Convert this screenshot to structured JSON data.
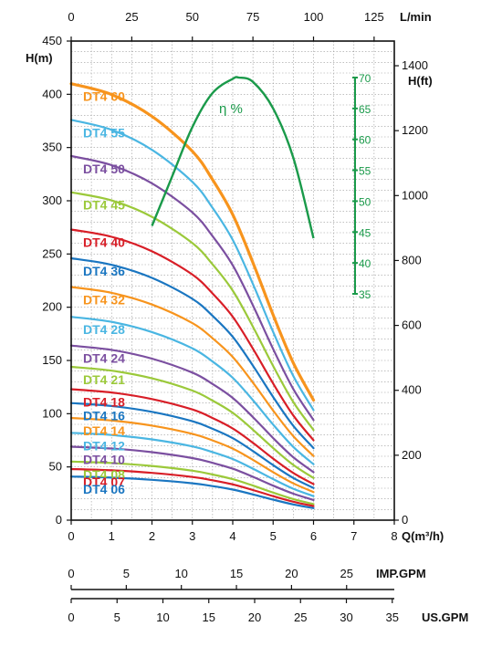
{
  "chart_data": {
    "type": "line",
    "x_unit": "Q(m³/h)",
    "y_unit_left": "H(m)",
    "y_unit_right": "H(ft)",
    "top_axis_unit": "L/min",
    "imp_unit": "IMP.GPM",
    "us_unit": "US.GPM",
    "eta_label": "η %",
    "xlim": [
      0,
      8
    ],
    "ylim": [
      0,
      450
    ],
    "ft_lim": [
      0,
      1476
    ],
    "x_ticks": [
      "0",
      "1",
      "2",
      "3",
      "4",
      "5",
      "6",
      "7",
      "8"
    ],
    "y_ticks": [
      "0",
      "50",
      "100",
      "150",
      "200",
      "250",
      "300",
      "350",
      "400",
      "450"
    ],
    "ft_ticks": [
      "0",
      "200",
      "400",
      "600",
      "800",
      "1000",
      "1200",
      "1400"
    ],
    "lmin_ticks": [
      "0",
      "25",
      "50",
      "75",
      "100",
      "125"
    ],
    "imp_ticks": [
      "0",
      "5",
      "10",
      "15",
      "20",
      "25"
    ],
    "us_ticks": [
      "0",
      "5",
      "10",
      "15",
      "20",
      "25",
      "30",
      "35"
    ],
    "eff_ticks": [
      "70",
      "65",
      "60",
      "55",
      "50",
      "45",
      "40",
      "35"
    ],
    "eff_scale": {
      "min": 35,
      "max": 70
    },
    "x": [
      0,
      1,
      2,
      3,
      3.5,
      4,
      4.5,
      5,
      5.5,
      6
    ],
    "shape": [
      1.0,
      0.975,
      0.925,
      0.845,
      0.78,
      0.7,
      0.59,
      0.47,
      0.36,
      0.275
    ],
    "series": [
      {
        "name": "DT4-60",
        "shutoff": 410,
        "color": "#f7941d"
      },
      {
        "name": "DT4-55",
        "shutoff": 376,
        "color": "#4ab6e2"
      },
      {
        "name": "DT4-50",
        "shutoff": 342,
        "color": "#7b4fa0"
      },
      {
        "name": "DT4-45",
        "shutoff": 308,
        "color": "#9bc93a"
      },
      {
        "name": "DT4-40",
        "shutoff": 273,
        "color": "#d81e27"
      },
      {
        "name": "DT4-36",
        "shutoff": 246,
        "color": "#1a76c1"
      },
      {
        "name": "DT4-32",
        "shutoff": 219,
        "color": "#f7941d"
      },
      {
        "name": "DT4-28",
        "shutoff": 191,
        "color": "#4ab6e2"
      },
      {
        "name": "DT4-24",
        "shutoff": 164,
        "color": "#7b4fa0"
      },
      {
        "name": "DT4-21",
        "shutoff": 144,
        "color": "#9bc93a"
      },
      {
        "name": "DT4-18",
        "shutoff": 123,
        "color": "#d81e27"
      },
      {
        "name": "DT4-16",
        "shutoff": 110,
        "color": "#1a76c1"
      },
      {
        "name": "DT4-14",
        "shutoff": 96,
        "color": "#f7941d"
      },
      {
        "name": "DT4-12",
        "shutoff": 82,
        "color": "#4ab6e2"
      },
      {
        "name": "DT4-10",
        "shutoff": 69,
        "color": "#7b4fa0"
      },
      {
        "name": "DT4-08",
        "shutoff": 55,
        "color": "#9bc93a"
      },
      {
        "name": "DT4-07",
        "shutoff": 48,
        "color": "#d81e27"
      },
      {
        "name": "DT4-06",
        "shutoff": 41,
        "color": "#1a76c1"
      }
    ],
    "efficiency": {
      "name": "η %",
      "color": "#1a9a4a",
      "x": [
        2.0,
        2.5,
        3.0,
        3.5,
        4.0,
        4.15,
        4.5,
        5.0,
        5.5,
        6.0
      ],
      "values": [
        46,
        54,
        62,
        67.5,
        69.8,
        70,
        69.3,
        65,
        57,
        44
      ]
    },
    "grid": true
  }
}
